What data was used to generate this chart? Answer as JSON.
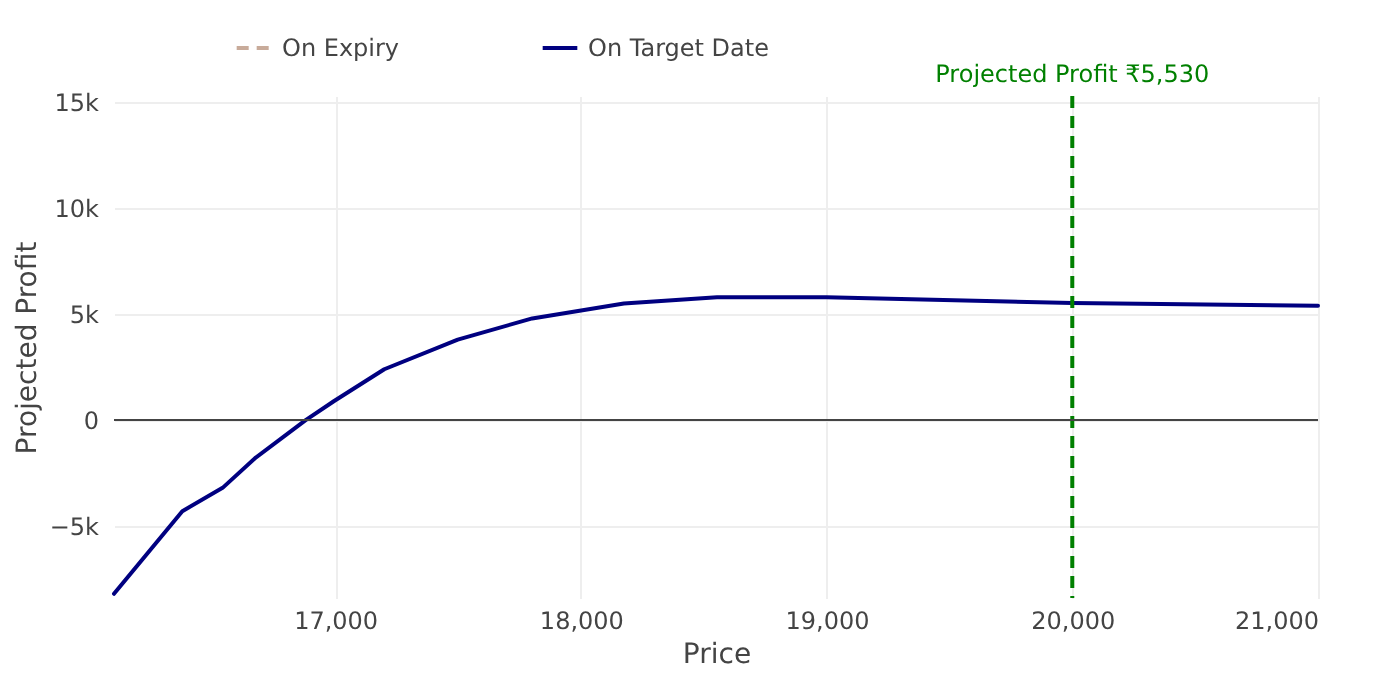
{
  "chart_data": {
    "type": "line",
    "xlabel": "Price",
    "ylabel": "Projected Profit",
    "x": [
      16100,
      16378,
      16542,
      16674,
      16880,
      16996,
      17200,
      17499,
      17802,
      18175,
      18554,
      19000,
      20000,
      21000
    ],
    "series": [
      {
        "name": "On Expiry",
        "color": "#c8ab9a",
        "line_style": "dashed",
        "values": [
          null,
          null,
          null,
          null,
          null,
          null,
          null,
          null,
          null,
          null,
          null,
          null,
          null,
          null
        ]
      },
      {
        "name": "On Target Date",
        "color": "#000080",
        "line_style": "solid",
        "values": [
          -8200,
          -4300,
          -3200,
          -1800,
          0,
          900,
          2400,
          3800,
          4800,
          5500,
          5800,
          5800,
          5530,
          5400
        ]
      }
    ],
    "xlim": [
      16100,
      21000
    ],
    "xticks": [
      {
        "value": 17000,
        "label": "17,000"
      },
      {
        "value": 18000,
        "label": "18,000"
      },
      {
        "value": 19000,
        "label": "19,000"
      },
      {
        "value": 20000,
        "label": "20,000"
      },
      {
        "value": 21000,
        "label": "21,000"
      }
    ],
    "ylim": [
      -8400,
      15300
    ],
    "yticks": [
      {
        "value": -5000,
        "label": "−5k"
      },
      {
        "value": 0,
        "label": "0"
      },
      {
        "value": 5000,
        "label": "5k"
      },
      {
        "value": 10000,
        "label": "10k"
      },
      {
        "value": 15000,
        "label": "15k"
      }
    ],
    "ref_lines": [
      {
        "axis": "x",
        "value": 20000,
        "label": "Projected Profit ₹5,530",
        "color": "#008000",
        "line_style": "dashed"
      },
      {
        "axis": "y",
        "value": 0,
        "color": "#444444",
        "line_style": "solid"
      }
    ],
    "grid": true,
    "legend": "top left"
  }
}
